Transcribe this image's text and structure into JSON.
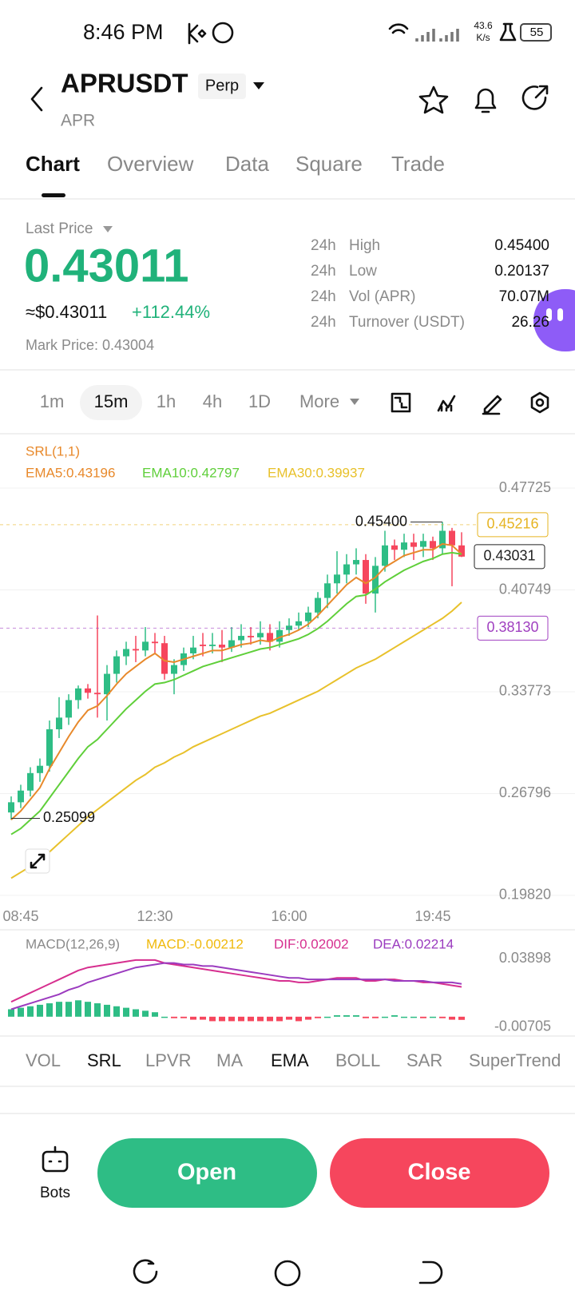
{
  "status_bar": {
    "time": "8:46 PM",
    "net_speed": "43.6",
    "net_unit": "K/s",
    "battery": "55"
  },
  "header": {
    "symbol": "APRUSDT",
    "badge": "Perp",
    "subtitle": "APR"
  },
  "tabs": {
    "items": [
      "Chart",
      "Overview",
      "Data",
      "Square",
      "Trade"
    ],
    "active": 0
  },
  "price": {
    "label": "Last Price",
    "last": "0.43011",
    "usd": "≈$0.43011",
    "change": "+112.44%",
    "mark": "Mark Price: 0.43004"
  },
  "stats": [
    {
      "period": "24h",
      "label": "High",
      "value": "0.45400"
    },
    {
      "period": "24h",
      "label": "Low",
      "value": "0.20137"
    },
    {
      "period": "24h",
      "label": "Vol (APR)",
      "value": "70.07M"
    },
    {
      "period": "24h",
      "label": "Turnover (USDT)",
      "value": "26.26"
    }
  ],
  "intervals": {
    "items": [
      "1m",
      "15m",
      "1h",
      "4h",
      "1D",
      "More"
    ],
    "active": 1
  },
  "chart_data": [
    {
      "type": "candlestick",
      "indicator": "SRL(1,1)",
      "up_color": "#2ebd85",
      "down_color": "#f6465d",
      "categories": [
        "08:45",
        null,
        null,
        null,
        null,
        null,
        null,
        null,
        null,
        null,
        null,
        null,
        null,
        null,
        null,
        "12:30",
        null,
        null,
        null,
        null,
        null,
        null,
        null,
        null,
        null,
        null,
        null,
        null,
        null,
        "16:00",
        null,
        null,
        null,
        null,
        null,
        null,
        null,
        null,
        null,
        null,
        null,
        null,
        null,
        null,
        "19:45",
        null,
        null,
        null
      ],
      "candles": [
        [
          0.255,
          0.266,
          0.25,
          0.262
        ],
        [
          0.262,
          0.274,
          0.258,
          0.27
        ],
        [
          0.27,
          0.286,
          0.266,
          0.282
        ],
        [
          0.282,
          0.292,
          0.276,
          0.287
        ],
        [
          0.287,
          0.318,
          0.283,
          0.312
        ],
        [
          0.312,
          0.334,
          0.306,
          0.32
        ],
        [
          0.32,
          0.336,
          0.315,
          0.332
        ],
        [
          0.332,
          0.342,
          0.326,
          0.34
        ],
        [
          0.34,
          0.343,
          0.333,
          0.337
        ],
        [
          0.337,
          0.39,
          0.32,
          0.336
        ],
        [
          0.336,
          0.356,
          0.318,
          0.35
        ],
        [
          0.35,
          0.366,
          0.344,
          0.362
        ],
        [
          0.362,
          0.372,
          0.356,
          0.367
        ],
        [
          0.367,
          0.376,
          0.358,
          0.366
        ],
        [
          0.366,
          0.382,
          0.362,
          0.372
        ],
        [
          0.372,
          0.378,
          0.364,
          0.371
        ],
        [
          0.371,
          0.376,
          0.346,
          0.35
        ],
        [
          0.35,
          0.36,
          0.336,
          0.356
        ],
        [
          0.356,
          0.368,
          0.352,
          0.364
        ],
        [
          0.364,
          0.376,
          0.36,
          0.368
        ],
        [
          0.37,
          0.378,
          0.362,
          0.369
        ],
        [
          0.369,
          0.378,
          0.364,
          0.37
        ],
        [
          0.37,
          0.38,
          0.358,
          0.368
        ],
        [
          0.368,
          0.382,
          0.365,
          0.373
        ],
        [
          0.373,
          0.384,
          0.368,
          0.376
        ],
        [
          0.376,
          0.382,
          0.37,
          0.375
        ],
        [
          0.375,
          0.386,
          0.37,
          0.378
        ],
        [
          0.378,
          0.384,
          0.366,
          0.372
        ],
        [
          0.372,
          0.386,
          0.368,
          0.38
        ],
        [
          0.38,
          0.388,
          0.376,
          0.383
        ],
        [
          0.383,
          0.392,
          0.38,
          0.386
        ],
        [
          0.386,
          0.396,
          0.382,
          0.392
        ],
        [
          0.392,
          0.406,
          0.388,
          0.402
        ],
        [
          0.402,
          0.418,
          0.395,
          0.412
        ],
        [
          0.412,
          0.434,
          0.405,
          0.418
        ],
        [
          0.418,
          0.432,
          0.412,
          0.425
        ],
        [
          0.425,
          0.436,
          0.418,
          0.428
        ],
        [
          0.428,
          0.432,
          0.398,
          0.405
        ],
        [
          0.405,
          0.43,
          0.392,
          0.424
        ],
        [
          0.424,
          0.448,
          0.42,
          0.438
        ],
        [
          0.438,
          0.442,
          0.428,
          0.435
        ],
        [
          0.435,
          0.446,
          0.43,
          0.44
        ],
        [
          0.44,
          0.446,
          0.428,
          0.437
        ],
        [
          0.437,
          0.446,
          0.43,
          0.441
        ],
        [
          0.441,
          0.444,
          0.428,
          0.436
        ],
        [
          0.436,
          0.454,
          0.432,
          0.448
        ],
        [
          0.448,
          0.45,
          0.41,
          0.438
        ],
        [
          0.438,
          0.447,
          0.43,
          0.4303
        ]
      ],
      "series": [
        {
          "name": "EMA5:0.43196",
          "color": "#e8892b",
          "values": [
            0.25,
            0.256,
            0.264,
            0.272,
            0.285,
            0.296,
            0.307,
            0.317,
            0.325,
            0.328,
            0.335,
            0.343,
            0.35,
            0.355,
            0.36,
            0.364,
            0.359,
            0.358,
            0.36,
            0.362,
            0.364,
            0.366,
            0.366,
            0.368,
            0.37,
            0.371,
            0.373,
            0.372,
            0.375,
            0.377,
            0.38,
            0.384,
            0.39,
            0.397,
            0.404,
            0.411,
            0.416,
            0.412,
            0.416,
            0.423,
            0.427,
            0.431,
            0.433,
            0.435,
            0.435,
            0.439,
            0.438,
            0.432
          ]
        },
        {
          "name": "EMA10:0.42797",
          "color": "#5fcf3a",
          "values": [
            0.24,
            0.244,
            0.25,
            0.256,
            0.265,
            0.274,
            0.283,
            0.292,
            0.3,
            0.305,
            0.312,
            0.319,
            0.326,
            0.332,
            0.338,
            0.343,
            0.344,
            0.346,
            0.349,
            0.352,
            0.355,
            0.357,
            0.359,
            0.361,
            0.363,
            0.365,
            0.367,
            0.368,
            0.37,
            0.372,
            0.374,
            0.377,
            0.381,
            0.386,
            0.392,
            0.398,
            0.403,
            0.404,
            0.408,
            0.413,
            0.417,
            0.421,
            0.424,
            0.427,
            0.429,
            0.432,
            0.433,
            0.432
          ]
        },
        {
          "name": "EMA30:0.39937",
          "color": "#e8c12b",
          "values": [
            0.21,
            0.214,
            0.218,
            0.223,
            0.228,
            0.234,
            0.24,
            0.246,
            0.252,
            0.257,
            0.262,
            0.267,
            0.272,
            0.277,
            0.281,
            0.286,
            0.289,
            0.293,
            0.296,
            0.3,
            0.303,
            0.306,
            0.309,
            0.312,
            0.315,
            0.318,
            0.321,
            0.323,
            0.326,
            0.329,
            0.332,
            0.335,
            0.338,
            0.342,
            0.346,
            0.35,
            0.354,
            0.357,
            0.36,
            0.364,
            0.368,
            0.372,
            0.376,
            0.38,
            0.384,
            0.388,
            0.393,
            0.399
          ]
        }
      ],
      "ylim": [
        0.1905,
        0.4833
      ],
      "yticks": [
        0.47725,
        0.40749,
        0.33773,
        0.26796,
        {
          "value": 0.1982,
          "label": "0.19820"
        }
      ],
      "grid": true,
      "price_lines": [
        {
          "value": 0.45216,
          "color": "#e6b422",
          "dashed": true
        },
        {
          "value": 0.43031,
          "color": "#222222",
          "dashed": false
        },
        {
          "value": 0.3813,
          "label": "0.38130",
          "color": "#a040c0",
          "dashed": true
        }
      ],
      "annotations": [
        {
          "index": 45,
          "value": 0.454,
          "label": "0.45400"
        },
        {
          "index": 0,
          "value": 0.25099
        }
      ]
    },
    {
      "type": "macd",
      "title": "MACD(12,26,9)",
      "up_color": "#2ebd85",
      "down_color": "#f6465d",
      "histogram": {
        "name": "MACD:-0.00212",
        "color": "#f0b90b",
        "values": [
          0.005,
          0.006,
          0.007,
          0.008,
          0.009,
          0.01,
          0.01,
          0.011,
          0.01,
          0.009,
          0.008,
          0.007,
          0.006,
          0.005,
          0.004,
          0.003,
          0.0,
          -0.001,
          -0.001,
          -0.002,
          -0.002,
          -0.003,
          -0.003,
          -0.003,
          -0.003,
          -0.003,
          -0.003,
          -0.003,
          -0.003,
          -0.002,
          -0.003,
          -0.002,
          -0.001,
          0.0,
          0.001,
          0.001,
          0.001,
          -0.001,
          -0.001,
          0.0,
          0.001,
          0.0,
          0.0,
          -0.001,
          0.0,
          -0.001,
          -0.002,
          -0.00212
        ]
      },
      "series": [
        {
          "name": "DIF:0.02002",
          "color": "#d62f8f",
          "values": [
            0.01,
            0.013,
            0.016,
            0.019,
            0.022,
            0.025,
            0.028,
            0.031,
            0.033,
            0.034,
            0.035,
            0.036,
            0.037,
            0.038,
            0.038,
            0.038,
            0.036,
            0.035,
            0.034,
            0.033,
            0.032,
            0.031,
            0.03,
            0.029,
            0.028,
            0.027,
            0.026,
            0.025,
            0.024,
            0.024,
            0.023,
            0.023,
            0.024,
            0.025,
            0.026,
            0.026,
            0.026,
            0.024,
            0.024,
            0.025,
            0.025,
            0.024,
            0.024,
            0.023,
            0.023,
            0.022,
            0.021,
            0.02
          ]
        },
        {
          "name": "DEA:0.02214",
          "color": "#9b3bbf",
          "values": [
            0.005,
            0.007,
            0.009,
            0.011,
            0.013,
            0.015,
            0.018,
            0.02,
            0.023,
            0.025,
            0.027,
            0.029,
            0.031,
            0.033,
            0.034,
            0.035,
            0.036,
            0.036,
            0.035,
            0.035,
            0.034,
            0.034,
            0.033,
            0.032,
            0.031,
            0.03,
            0.029,
            0.028,
            0.027,
            0.026,
            0.026,
            0.025,
            0.025,
            0.025,
            0.025,
            0.025,
            0.025,
            0.025,
            0.025,
            0.025,
            0.024,
            0.024,
            0.024,
            0.024,
            0.023,
            0.023,
            0.023,
            0.022
          ]
        }
      ],
      "ylim": [
        -0.0092,
        0.0433
      ],
      "yticks": [
        0.03898,
        -0.00705
      ]
    }
  ],
  "indicators": {
    "items": [
      "VOL",
      "SRL",
      "LPVR",
      "MA",
      "EMA",
      "BOLL",
      "SAR",
      "SuperTrend"
    ],
    "active": [
      1,
      4
    ]
  },
  "actions": {
    "bots": "Bots",
    "open": "Open",
    "close": "Close"
  }
}
